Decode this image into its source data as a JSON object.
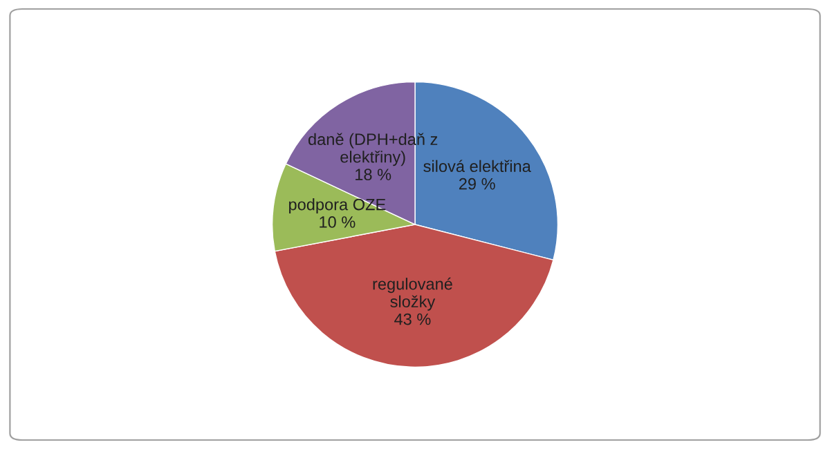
{
  "chart_data": {
    "type": "pie",
    "categories": [
      "silová elektřina",
      "regulované složky",
      "podpora OZE",
      "daně (DPH+daň z elektřiny)"
    ],
    "values": [
      29,
      43,
      10,
      18
    ],
    "value_labels": [
      "29 %",
      "43 %",
      "10 %",
      "18 %"
    ],
    "colors": [
      "#4f81bd",
      "#c0504d",
      "#9bbb59",
      "#8064a2"
    ],
    "legend": false
  }
}
